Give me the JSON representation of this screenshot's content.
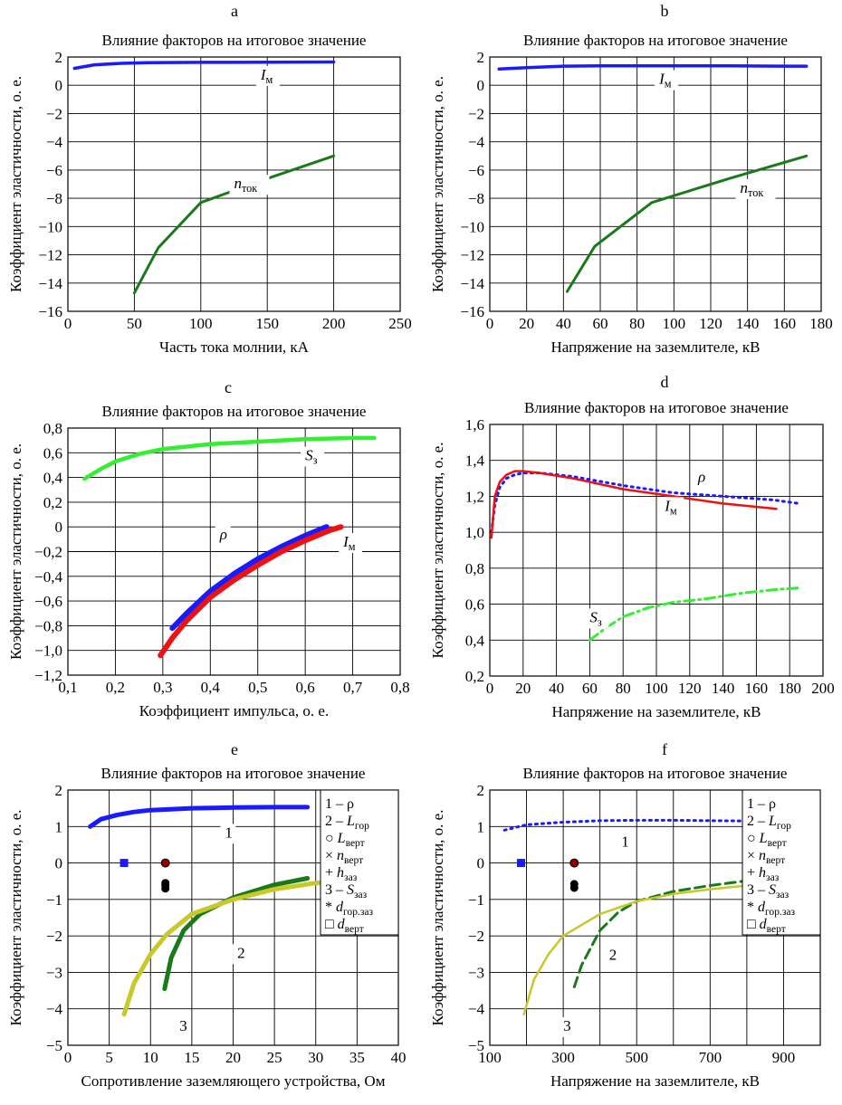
{
  "figure_title": "",
  "chart_data": [
    {
      "panel": "a",
      "type": "line",
      "title": "Влияние факторов на итоговое значение",
      "xlabel": "Часть тока молнии, кА",
      "ylabel": "Коэффициент эластичности, о. е.",
      "xlim": [
        0,
        250
      ],
      "ylim": [
        -16,
        2
      ],
      "xticks": [
        0,
        50,
        100,
        150,
        200,
        250
      ],
      "xtick_labels": [
        "0",
        "50",
        "100",
        "150",
        "200",
        "250"
      ],
      "yticks": [
        -16,
        -14,
        -12,
        -10,
        -8,
        -6,
        -4,
        -2,
        0,
        2
      ],
      "ytick_labels": [
        "−16",
        "−14",
        "−12",
        "−10",
        "−8",
        "−6",
        "−4",
        "−2",
        "0",
        "2"
      ],
      "grid": true,
      "series": [
        {
          "name": "Iм",
          "color": "#1a1aff",
          "style": "solid",
          "width": 3.5,
          "x": [
            5,
            20,
            40,
            60,
            100,
            150,
            200
          ],
          "y": [
            1.2,
            1.45,
            1.55,
            1.6,
            1.62,
            1.63,
            1.65
          ]
        },
        {
          "name": "nток",
          "color": "#1a7a1a",
          "style": "solid",
          "width": 3,
          "x": [
            50,
            68,
            100,
            150,
            200
          ],
          "y": [
            -14.7,
            -11.5,
            -8.3,
            -6.6,
            -5.0
          ]
        }
      ],
      "annotations": [
        {
          "main": "I",
          "sub": "м",
          "x": 145,
          "y": 0.4
        },
        {
          "main": "n",
          "sub": "ток",
          "x": 125,
          "y": -7.3
        }
      ]
    },
    {
      "panel": "b",
      "type": "line",
      "title": "Влияние факторов на итоговое значение",
      "xlabel": "Напряжение на заземлителе, кВ",
      "ylabel": "Коэффициент эластичности, о. е.",
      "xlim": [
        0,
        180
      ],
      "ylim": [
        -16,
        2
      ],
      "xticks": [
        0,
        20,
        40,
        60,
        80,
        100,
        120,
        140,
        160,
        180
      ],
      "xtick_labels": [
        "0",
        "20",
        "40",
        "60",
        "80",
        "100",
        "120",
        "140",
        "160",
        "180"
      ],
      "yticks": [
        -16,
        -14,
        -12,
        -10,
        -8,
        -6,
        -4,
        -2,
        0,
        2
      ],
      "ytick_labels": [
        "−16",
        "−14",
        "−12",
        "−10",
        "−8",
        "−6",
        "−4",
        "−2",
        "0",
        "2"
      ],
      "grid": true,
      "series": [
        {
          "name": "Iм",
          "color": "#1a1aff",
          "style": "solid",
          "width": 3.5,
          "x": [
            5,
            20,
            40,
            60,
            80,
            100,
            130,
            160,
            172
          ],
          "y": [
            1.15,
            1.25,
            1.35,
            1.38,
            1.38,
            1.38,
            1.37,
            1.35,
            1.35
          ]
        },
        {
          "name": "nток",
          "color": "#1a7a1a",
          "style": "solid",
          "width": 3,
          "x": [
            42,
            57,
            88,
            130,
            172
          ],
          "y": [
            -14.6,
            -11.4,
            -8.3,
            -6.6,
            -5.0
          ]
        }
      ],
      "annotations": [
        {
          "main": "I",
          "sub": "м",
          "x": 92,
          "y": 0.1
        },
        {
          "main": "n",
          "sub": "ток",
          "x": 136,
          "y": -7.6
        }
      ]
    },
    {
      "panel": "c",
      "type": "line",
      "title": "Влияние факторов на итоговое значение",
      "xlabel": "Коэффициент импульса, о. е.",
      "ylabel": "Коэффициент эластичности, о. е.",
      "xlim": [
        0.1,
        0.8
      ],
      "ylim": [
        -1.2,
        0.8
      ],
      "xticks": [
        0.1,
        0.2,
        0.3,
        0.4,
        0.5,
        0.6,
        0.7,
        0.8
      ],
      "xtick_labels": [
        "0,1",
        "0,2",
        "0,3",
        "0,4",
        "0,5",
        "0,6",
        "0,7",
        "0,8"
      ],
      "yticks": [
        -1.2,
        -1.0,
        -0.8,
        -0.6,
        -0.4,
        -0.2,
        0,
        0.2,
        0.4,
        0.6,
        0.8
      ],
      "ytick_labels": [
        "−1,2",
        "−1,0",
        "−0,8",
        "−0,6",
        "−0,4",
        "−0,2",
        "0",
        "0,2",
        "0,4",
        "0,6",
        "0,8"
      ],
      "grid": true,
      "series": [
        {
          "name": "Sз",
          "color": "#33ee33",
          "style": "solid",
          "width": 4.5,
          "x": [
            0.135,
            0.17,
            0.2,
            0.25,
            0.3,
            0.4,
            0.5,
            0.6,
            0.7,
            0.745
          ],
          "y": [
            0.39,
            0.47,
            0.53,
            0.59,
            0.63,
            0.67,
            0.69,
            0.71,
            0.72,
            0.72
          ]
        },
        {
          "name": "ρ",
          "color": "#1a1aff",
          "style": "solid",
          "width": 6,
          "x": [
            0.32,
            0.35,
            0.4,
            0.45,
            0.5,
            0.55,
            0.6,
            0.645
          ],
          "y": [
            -0.82,
            -0.7,
            -0.52,
            -0.38,
            -0.26,
            -0.16,
            -0.07,
            0.0
          ]
        },
        {
          "name": "Iм",
          "color": "#ee1111",
          "style": "solid",
          "width": 6,
          "x": [
            0.295,
            0.32,
            0.35,
            0.4,
            0.45,
            0.5,
            0.55,
            0.6,
            0.65,
            0.675
          ],
          "y": [
            -1.04,
            -0.9,
            -0.76,
            -0.57,
            -0.43,
            -0.31,
            -0.2,
            -0.11,
            -0.03,
            0.0
          ]
        }
      ],
      "annotations": [
        {
          "main": "S",
          "sub": "з",
          "x": 0.6,
          "y": 0.54
        },
        {
          "main": "ρ",
          "sub": "",
          "x": 0.42,
          "y": -0.1
        },
        {
          "main": "I",
          "sub": "м",
          "x": 0.68,
          "y": -0.16
        }
      ]
    },
    {
      "panel": "d",
      "type": "line",
      "title": "Влияние факторов на итоговое значение",
      "xlabel": "Напряжение на заземлителе, кВ",
      "ylabel": "Коэффициент эластичности, о. е.",
      "xlim": [
        0,
        200
      ],
      "ylim": [
        0.2,
        1.6
      ],
      "xticks": [
        0,
        20,
        40,
        60,
        80,
        100,
        120,
        140,
        160,
        180,
        200
      ],
      "xtick_labels": [
        "0",
        "20",
        "40",
        "60",
        "80",
        "100",
        "120",
        "140",
        "160",
        "180",
        "200"
      ],
      "yticks": [
        0.2,
        0.4,
        0.6,
        0.8,
        1.0,
        1.2,
        1.4,
        1.6
      ],
      "ytick_labels": [
        "0,2",
        "0,4",
        "0,6",
        "0,8",
        "1,0",
        "1,2",
        "1,4",
        "1,6"
      ],
      "grid": true,
      "series": [
        {
          "name": "ρ",
          "color": "#1a1aff",
          "style": "dotted",
          "width": 3,
          "x": [
            1,
            3,
            6,
            10,
            15,
            20,
            30,
            50,
            80,
            110,
            140,
            170,
            186
          ],
          "y": [
            1.0,
            1.15,
            1.25,
            1.3,
            1.32,
            1.33,
            1.33,
            1.31,
            1.26,
            1.22,
            1.2,
            1.18,
            1.16
          ]
        },
        {
          "name": "Iм",
          "color": "#ee1111",
          "style": "solid",
          "width": 2.5,
          "x": [
            1,
            3,
            6,
            10,
            15,
            20,
            30,
            50,
            80,
            110,
            140,
            172
          ],
          "y": [
            0.97,
            1.2,
            1.28,
            1.32,
            1.34,
            1.34,
            1.33,
            1.3,
            1.24,
            1.2,
            1.16,
            1.13
          ]
        },
        {
          "name": "Sз",
          "color": "#33ee33",
          "style": "dashdot",
          "width": 3,
          "x": [
            60,
            70,
            80,
            95,
            110,
            130,
            150,
            170,
            185
          ],
          "y": [
            0.4,
            0.47,
            0.53,
            0.58,
            0.61,
            0.63,
            0.66,
            0.68,
            0.69
          ]
        }
      ],
      "annotations": [
        {
          "main": "ρ",
          "sub": "",
          "x": 125,
          "y": 1.28
        },
        {
          "main": "I",
          "sub": "м",
          "x": 105,
          "y": 1.12
        },
        {
          "main": "S",
          "sub": "з",
          "x": 60,
          "y": 0.5
        }
      ]
    },
    {
      "panel": "e",
      "type": "line",
      "title": "Влияние факторов на итоговое значение",
      "xlabel": "Сопротивление заземляющего устройства, Ом",
      "ylabel": "Коэффициент эластичности, о. е.",
      "xlim": [
        0,
        40
      ],
      "ylim": [
        -5,
        2
      ],
      "xticks": [
        0,
        5,
        10,
        15,
        20,
        25,
        30,
        35,
        40
      ],
      "xtick_labels": [
        "0",
        "5",
        "10",
        "15",
        "20",
        "25",
        "30",
        "35",
        "40"
      ],
      "yticks": [
        -5,
        -4,
        -3,
        -2,
        -1,
        0,
        1,
        2
      ],
      "ytick_labels": [
        "−5",
        "−4",
        "−3",
        "−2",
        "−1",
        "0",
        "1",
        "2"
      ],
      "grid": true,
      "series": [
        {
          "name": "1",
          "color": "#1a1aff",
          "style": "solid",
          "width": 5,
          "x": [
            2.7,
            4,
            6,
            8,
            10,
            15,
            20,
            25,
            29
          ],
          "y": [
            1.0,
            1.2,
            1.32,
            1.4,
            1.45,
            1.5,
            1.52,
            1.53,
            1.53
          ]
        },
        {
          "name": "2",
          "color": "#1a7a1a",
          "style": "solid",
          "width": 5,
          "x": [
            11.7,
            12.5,
            14,
            16,
            20,
            25,
            29
          ],
          "y": [
            -3.45,
            -2.6,
            -1.85,
            -1.4,
            -0.95,
            -0.6,
            -0.42
          ]
        },
        {
          "name": "3",
          "color": "#c8c82a",
          "style": "solid",
          "width": 5,
          "x": [
            6.8,
            8,
            10,
            12,
            15,
            20,
            25,
            30,
            32
          ],
          "y": [
            -4.15,
            -3.3,
            -2.5,
            -1.95,
            -1.4,
            -1.0,
            -0.72,
            -0.55,
            -0.52
          ]
        }
      ],
      "markers": [
        {
          "x": 6.8,
          "y": 0.0,
          "color": "#1a1aff",
          "shape": "square"
        },
        {
          "x": 11.8,
          "y": 0.0,
          "color": "#8b0000",
          "shape": "circle"
        },
        {
          "x": 11.8,
          "y": -0.55,
          "color": "#000000",
          "shape": "dot"
        },
        {
          "x": 11.8,
          "y": -0.62,
          "color": "#000000",
          "shape": "dot"
        },
        {
          "x": 11.8,
          "y": -0.7,
          "color": "#000000",
          "shape": "dot"
        }
      ],
      "annotations": [
        {
          "main": "1",
          "sub": "",
          "x": 19,
          "y": 0.7
        },
        {
          "main": "2",
          "sub": "",
          "x": 20.5,
          "y": -2.6
        },
        {
          "main": "3",
          "sub": "",
          "x": 13.5,
          "y": -4.6
        }
      ],
      "legend": {
        "position": "top-right",
        "entries": [
          {
            "sym": "1 – ",
            "main": "ρ",
            "sub": ""
          },
          {
            "sym": "2 – ",
            "main": "L",
            "sub": "гор"
          },
          {
            "sym": "○ ",
            "main": "L",
            "sub": "верт"
          },
          {
            "sym": "× ",
            "main": "n",
            "sub": "верт"
          },
          {
            "sym": "+ ",
            "main": "h",
            "sub": "заз"
          },
          {
            "sym": "3 – ",
            "main": "S",
            "sub": "заз"
          },
          {
            "sym": "* ",
            "main": "d",
            "sub": "гор.заз"
          },
          {
            "sym": "□ ",
            "main": "d",
            "sub": "верт"
          }
        ]
      }
    },
    {
      "panel": "f",
      "type": "line",
      "title": "Влияние факторов на итоговое значение",
      "xlabel": "Напряжение на заземлителе, кВ",
      "ylabel": "Коэффициент эластичности, о. е.",
      "xlim": [
        100,
        1000
      ],
      "ylim": [
        -5,
        2
      ],
      "xticks": [
        100,
        300,
        500,
        700,
        900
      ],
      "xtick_labels": [
        "100",
        "300",
        "500",
        "700",
        "900"
      ],
      "grid_x": [
        100,
        200,
        300,
        400,
        500,
        600,
        700,
        800,
        900,
        1000
      ],
      "yticks": [
        -5,
        -4,
        -3,
        -2,
        -1,
        0,
        1,
        2
      ],
      "ytick_labels": [
        "−5",
        "−4",
        "−3",
        "−2",
        "−1",
        "0",
        "1",
        "2"
      ],
      "grid": true,
      "series": [
        {
          "name": "1",
          "color": "#1a1aff",
          "style": "dotted",
          "width": 3,
          "x": [
            140,
            200,
            300,
            400,
            500,
            600,
            700,
            800
          ],
          "y": [
            0.9,
            1.05,
            1.12,
            1.16,
            1.17,
            1.17,
            1.16,
            1.15
          ]
        },
        {
          "name": "2",
          "color": "#1a7a1a",
          "style": "dashed",
          "width": 3,
          "x": [
            330,
            350,
            400,
            450,
            500,
            600,
            700,
            790
          ],
          "y": [
            -3.4,
            -2.8,
            -1.85,
            -1.35,
            -1.05,
            -0.78,
            -0.62,
            -0.5
          ]
        },
        {
          "name": "3",
          "color": "#c8c82a",
          "style": "solid",
          "width": 2.5,
          "x": [
            193,
            220,
            260,
            300,
            400,
            500,
            600,
            700,
            800,
            930
          ],
          "y": [
            -4.15,
            -3.2,
            -2.5,
            -2.0,
            -1.4,
            -1.05,
            -0.85,
            -0.72,
            -0.62,
            -0.55
          ]
        }
      ],
      "markers": [
        {
          "x": 185,
          "y": 0.0,
          "color": "#1a1aff",
          "shape": "square"
        },
        {
          "x": 330,
          "y": 0.0,
          "color": "#8b0000",
          "shape": "circle"
        },
        {
          "x": 330,
          "y": -0.58,
          "color": "#000000",
          "shape": "dot"
        },
        {
          "x": 330,
          "y": -0.68,
          "color": "#000000",
          "shape": "dot"
        }
      ],
      "annotations": [
        {
          "main": "1",
          "sub": "",
          "x": 458,
          "y": 0.45
        },
        {
          "main": "2",
          "sub": "",
          "x": 425,
          "y": -2.65
        },
        {
          "main": "3",
          "sub": "",
          "x": 300,
          "y": -4.6
        }
      ],
      "legend": {
        "position": "top-right",
        "entries": [
          {
            "sym": "1 – ",
            "main": "ρ",
            "sub": ""
          },
          {
            "sym": "2 – ",
            "main": "L",
            "sub": "гор"
          },
          {
            "sym": "○ ",
            "main": "L",
            "sub": "верт"
          },
          {
            "sym": "× ",
            "main": "n",
            "sub": "верт"
          },
          {
            "sym": "+ ",
            "main": "h",
            "sub": "заз"
          },
          {
            "sym": "3 – ",
            "main": "S",
            "sub": "заз"
          },
          {
            "sym": "* ",
            "main": "d",
            "sub": "гор.заз"
          },
          {
            "sym": "□ ",
            "main": "d",
            "sub": "верт"
          }
        ]
      }
    }
  ]
}
